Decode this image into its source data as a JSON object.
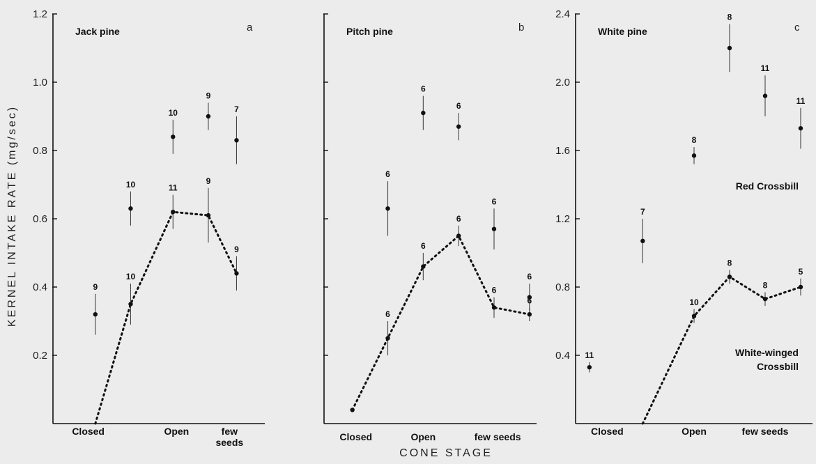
{
  "chart_data": [
    {
      "type": "scatter",
      "panel": "a",
      "title": "Jack pine",
      "ylim": [
        0,
        1.2
      ],
      "yticks": [
        "0.2",
        "0.4",
        "0.6",
        "0.8",
        "1.0",
        "1.2"
      ],
      "ytick_values": [
        0.2,
        0.4,
        0.6,
        0.8,
        1.0,
        1.2
      ],
      "xlim": [
        0,
        6
      ],
      "categories": [
        "Closed",
        "Open",
        "few seeds"
      ],
      "category_x": [
        1,
        3.5,
        5
      ],
      "series": [
        {
          "name": "Red Crossbill",
          "x": [
            1.2,
            2.2,
            3.4,
            4.4,
            5.2
          ],
          "y": [
            0.32,
            0.63,
            0.84,
            0.9,
            0.83
          ],
          "err": [
            0.06,
            0.05,
            0.05,
            0.04,
            0.07
          ],
          "n": [
            "9",
            "10",
            "10",
            "9",
            "7"
          ],
          "connected": false
        },
        {
          "name": "White-winged Crossbill",
          "x": [
            1.2,
            2.2,
            3.4,
            4.4,
            5.2
          ],
          "y": [
            0.0,
            0.35,
            0.62,
            0.61,
            0.44
          ],
          "err": [
            0.0,
            0.06,
            0.05,
            0.08,
            0.05
          ],
          "n": [
            "",
            "10",
            "11",
            "9",
            "9"
          ],
          "connected": true
        }
      ]
    },
    {
      "type": "scatter",
      "panel": "b",
      "title": "Pitch pine",
      "ylim": [
        0,
        1.2
      ],
      "yticks": [],
      "ytick_values": [
        0.2,
        0.4,
        0.6,
        0.8,
        1.0,
        1.2
      ],
      "xlim": [
        0,
        6
      ],
      "categories": [
        "Closed",
        "Open",
        "few seeds"
      ],
      "category_x": [
        0.9,
        2.8,
        4.9
      ],
      "series": [
        {
          "name": "Red Crossbill",
          "x": [
            1.8,
            2.8,
            3.8,
            4.8,
            5.8
          ],
          "y": [
            0.63,
            0.91,
            0.87,
            0.57,
            0.37
          ],
          "err": [
            0.08,
            0.05,
            0.04,
            0.06,
            0.04
          ],
          "n": [
            "6",
            "6",
            "6",
            "6",
            "6"
          ],
          "connected": false
        },
        {
          "name": "White-winged Crossbill",
          "x": [
            0.8,
            1.8,
            2.8,
            3.8,
            4.8,
            5.8
          ],
          "y": [
            0.04,
            0.25,
            0.46,
            0.55,
            0.34,
            0.32
          ],
          "err": [
            0.0,
            0.05,
            0.04,
            0.03,
            0.03,
            0.02
          ],
          "n": [
            "",
            "6",
            "6",
            "6",
            "6",
            "6"
          ],
          "connected": true
        }
      ]
    },
    {
      "type": "scatter",
      "panel": "c",
      "title": "White pine",
      "ylim": [
        0,
        2.4
      ],
      "yticks": [
        "0.4",
        "0.8",
        "1.2",
        "1.6",
        "2.0",
        "2.4"
      ],
      "ytick_values": [
        0.4,
        0.8,
        1.2,
        1.6,
        2.0,
        2.4
      ],
      "xlim": [
        0,
        6
      ],
      "categories": [
        "Closed",
        "Open",
        "few seeds"
      ],
      "category_x": [
        0.8,
        3.0,
        4.8
      ],
      "series": [
        {
          "name": "Red Crossbill",
          "x": [
            0.35,
            1.7,
            3.0,
            3.9,
            4.8,
            5.7
          ],
          "y": [
            0.33,
            1.07,
            1.57,
            2.2,
            1.92,
            1.73
          ],
          "err": [
            0.03,
            0.13,
            0.05,
            0.14,
            0.12,
            0.12
          ],
          "n": [
            "11",
            "7",
            "8",
            "8",
            "11",
            "11"
          ],
          "connected": false
        },
        {
          "name": "White-winged Crossbill",
          "x": [
            1.7,
            3.0,
            3.9,
            4.8,
            5.7
          ],
          "y": [
            0.0,
            0.63,
            0.86,
            0.73,
            0.8
          ],
          "err": [
            0.0,
            0.04,
            0.04,
            0.04,
            0.05
          ],
          "n": [
            "",
            "10",
            "8",
            "8",
            "5"
          ],
          "connected": true
        }
      ],
      "annotations": [
        "Red Crossbill",
        "White-winged",
        "Crossbill"
      ]
    }
  ],
  "ylabel": "KERNEL INTAKE RATE (mg/sec)",
  "xlabel": "CONE STAGE"
}
